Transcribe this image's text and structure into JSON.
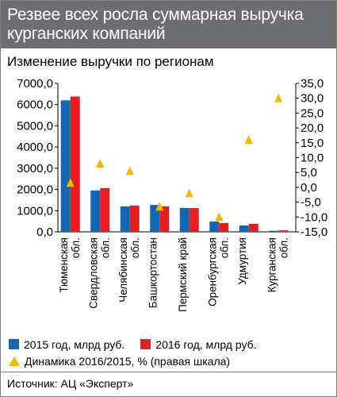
{
  "header": {
    "title": "Резвее всех росла суммарная выручка курганских компаний"
  },
  "subtitle": "Изменение выручки по регионам",
  "legend": {
    "s2015": "2015 год, млрд руб.",
    "s2016": "2016 год, млрд руб.",
    "dyn": "Динамика 2016/2015, % (правая шкала)"
  },
  "source": "Источник: АЦ «Эксперт»",
  "colors": {
    "s2015": "#1565b0",
    "s2016": "#e31e24",
    "dyn": "#f7b500",
    "header": "#6d6e71"
  },
  "chart_data": {
    "type": "bar",
    "categories": [
      [
        "Тюменская",
        "обл."
      ],
      [
        "Свердловская",
        "обл."
      ],
      [
        "Челябинская",
        "обл."
      ],
      [
        "Башкортостан"
      ],
      [
        "Пермский край"
      ],
      [
        "Оренбургская",
        "обл."
      ],
      [
        "Удмуртия"
      ],
      [
        "Курганская",
        "обл."
      ]
    ],
    "series": [
      {
        "name": "2015 год, млрд руб.",
        "values": [
          6200,
          1950,
          1200,
          1270,
          1130,
          490,
          300,
          50
        ],
        "axis": "left"
      },
      {
        "name": "2016 год, млрд руб.",
        "values": [
          6380,
          2060,
          1240,
          1200,
          1120,
          420,
          380,
          70
        ],
        "axis": "left"
      },
      {
        "name": "Динамика 2016/2015, % (правая шкала)",
        "values": [
          1.5,
          8.0,
          5.5,
          -6.5,
          -2.0,
          -10.0,
          16.0,
          30.0
        ],
        "axis": "right",
        "marker": "triangle"
      }
    ],
    "y_left": {
      "range": [
        0,
        7000
      ],
      "ticks": [
        "0,0",
        "1000,0",
        "2000,0",
        "3000,0",
        "4000,0",
        "5000,0",
        "6000,0",
        "7000,0"
      ]
    },
    "y_right": {
      "range": [
        -15,
        35
      ],
      "ticks": [
        "-15,0",
        "-10,0",
        "-5,0",
        "0,0",
        "5,0",
        "10,0",
        "15,0",
        "20,0",
        "25,0",
        "30,0",
        "35,0"
      ]
    },
    "legend_position": "bottom",
    "grid": false
  }
}
